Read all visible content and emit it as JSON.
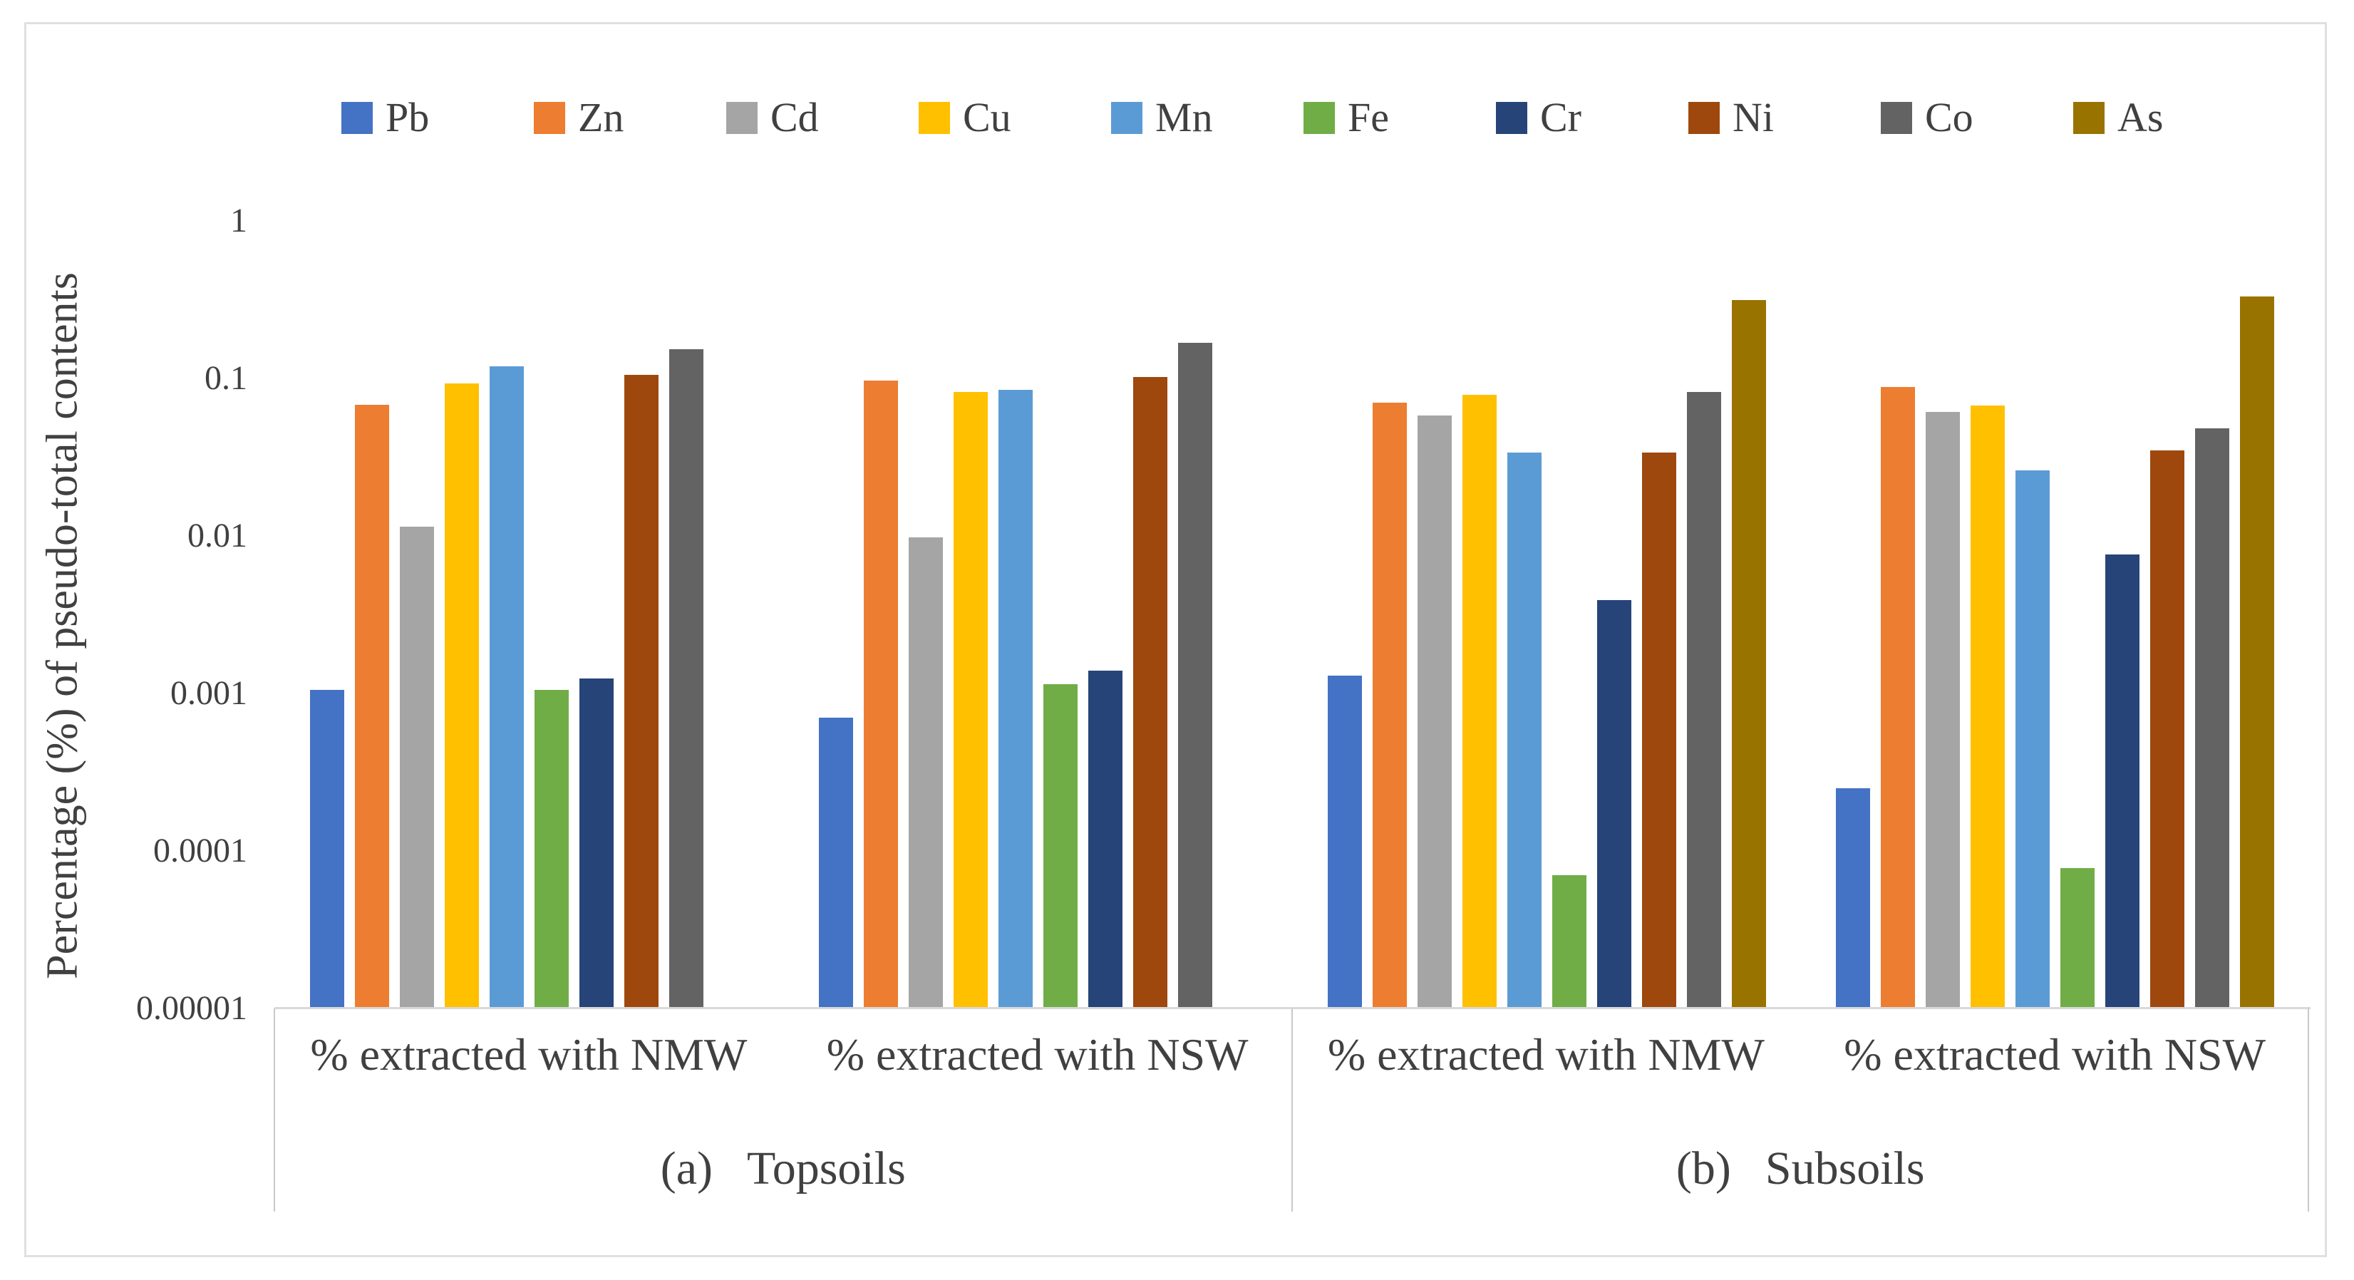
{
  "chart_data": {
    "type": "bar",
    "y_scale": "log",
    "ylim": [
      1e-05,
      1
    ],
    "ytick_labels": [
      "1",
      "0.1",
      "0.01",
      "0.001",
      "0.0001",
      "0.00001"
    ],
    "ylabel": "Percentage (%) of pseudo-total contents",
    "grid": false,
    "legend_position": "top",
    "categories": [
      "% extracted with NMW",
      "% extracted with NSW",
      "% extracted with NMW",
      "% extracted with NSW"
    ],
    "panels": [
      {
        "tag": "(a)",
        "name": "Topsoils",
        "category_indexes": [
          0,
          1
        ]
      },
      {
        "tag": "(b)",
        "name": "Subsoils",
        "category_indexes": [
          2,
          3
        ]
      }
    ],
    "series": [
      {
        "name": "Pb",
        "color": "#4472C4",
        "values": [
          0.00105,
          0.0007,
          0.0013,
          0.00025
        ]
      },
      {
        "name": "Zn",
        "color": "#ED7D31",
        "values": [
          0.068,
          0.097,
          0.07,
          0.088
        ]
      },
      {
        "name": "Cd",
        "color": "#A5A5A5",
        "values": [
          0.0115,
          0.0098,
          0.058,
          0.061
        ]
      },
      {
        "name": "Cu",
        "color": "#FFC000",
        "values": [
          0.093,
          0.082,
          0.079,
          0.067
        ]
      },
      {
        "name": "Mn",
        "color": "#5B9BD5",
        "values": [
          0.12,
          0.085,
          0.034,
          0.026
        ]
      },
      {
        "name": "Fe",
        "color": "#70AD47",
        "values": [
          0.00105,
          0.00115,
          7e-05,
          7.8e-05
        ]
      },
      {
        "name": "Cr",
        "color": "#264478",
        "values": [
          0.00125,
          0.0014,
          0.0039,
          0.0076
        ]
      },
      {
        "name": "Ni",
        "color": "#9E480E",
        "values": [
          0.105,
          0.102,
          0.034,
          0.035
        ]
      },
      {
        "name": "Co",
        "color": "#636363",
        "values": [
          0.153,
          0.168,
          0.082,
          0.048
        ]
      },
      {
        "name": "As",
        "color": "#997300",
        "values": [
          null,
          null,
          0.315,
          0.33
        ]
      }
    ],
    "axis_color": "#d9d9d9",
    "text_color": "#404040"
  }
}
